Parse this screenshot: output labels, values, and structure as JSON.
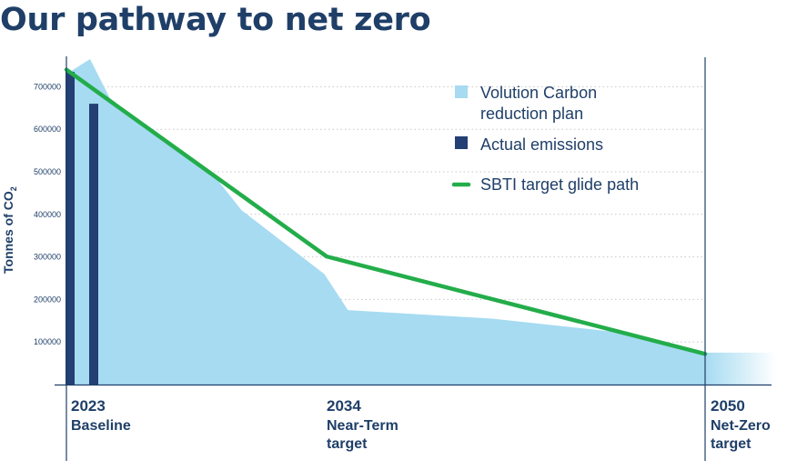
{
  "title": "Our pathway to net zero",
  "colors": {
    "text": "#1f3f68",
    "plan_area": "#a6dbf2",
    "actual_bar": "#233f73",
    "sbti_line": "#23ad4a",
    "grid": "#c7c7c7",
    "axis": "#1f3f68"
  },
  "chart_data": {
    "type": "area",
    "ylabel": "Tonnes of CO",
    "ylabel_subscript": "2",
    "ylim": [
      0,
      800000
    ],
    "yticks": [
      "100000",
      "200000",
      "300000",
      "400000",
      "500000",
      "600000",
      "700000"
    ],
    "grid": true,
    "legend_position": "top-right",
    "x_range": [
      2023,
      2050
    ],
    "milestones": [
      {
        "x": 2023,
        "year": "2023",
        "label_lines": [
          "Baseline"
        ]
      },
      {
        "x": 2034,
        "year": "2034",
        "label_lines": [
          "Near-Term",
          "target"
        ]
      },
      {
        "x": 2050,
        "year": "2050",
        "label_lines": [
          "Net-Zero",
          "target"
        ]
      }
    ],
    "series": [
      {
        "name": "Volution Carbon reduction plan",
        "legend_lines": [
          "Volution Carbon",
          "reduction plan"
        ],
        "type": "area",
        "points": [
          [
            2023,
            730000
          ],
          [
            2024,
            765000
          ],
          [
            2025,
            655000
          ],
          [
            2029.4,
            480000
          ],
          [
            2030.4,
            410000
          ],
          [
            2033.9,
            260000
          ],
          [
            2034.9,
            175000
          ],
          [
            2041,
            155000
          ],
          [
            2046,
            125000
          ],
          [
            2050,
            75000
          ],
          [
            2053,
            75000
          ]
        ]
      },
      {
        "name": "Actual emissions",
        "legend_lines": [
          "Actual emissions"
        ],
        "type": "bar",
        "bars": [
          {
            "x": 2023,
            "value": 735000
          },
          {
            "x": 2024,
            "value": 660000
          }
        ]
      },
      {
        "name": "SBTI target glide path",
        "legend_lines": [
          "SBTI target glide path"
        ],
        "type": "line",
        "points": [
          [
            2023,
            740000
          ],
          [
            2034,
            301000
          ],
          [
            2050,
            72000
          ]
        ]
      }
    ]
  }
}
